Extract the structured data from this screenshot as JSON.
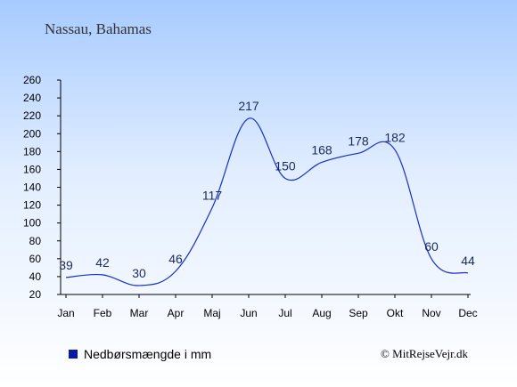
{
  "chart_data": {
    "type": "line",
    "title": "Nassau, Bahamas",
    "categories": [
      "Jan",
      "Feb",
      "Mar",
      "Apr",
      "Maj",
      "Jun",
      "Jul",
      "Aug",
      "Sep",
      "Okt",
      "Nov",
      "Dec"
    ],
    "series": [
      {
        "name": "Nedbørsmængde i mm",
        "values": [
          39,
          42,
          30,
          46,
          117,
          217,
          150,
          168,
          178,
          182,
          60,
          44
        ]
      }
    ],
    "yticks": [
      "260",
      "240",
      "220",
      "200",
      "180",
      "160",
      "140",
      "120",
      "100",
      "80",
      "60",
      "40",
      "20"
    ],
    "ylim": [
      20,
      260
    ],
    "grid": false,
    "line_color": "#1a2ec8",
    "legend_color": "#0a1aa8",
    "legend_position": "bottom-left",
    "credit": "© MitRejseVejr.dk"
  }
}
